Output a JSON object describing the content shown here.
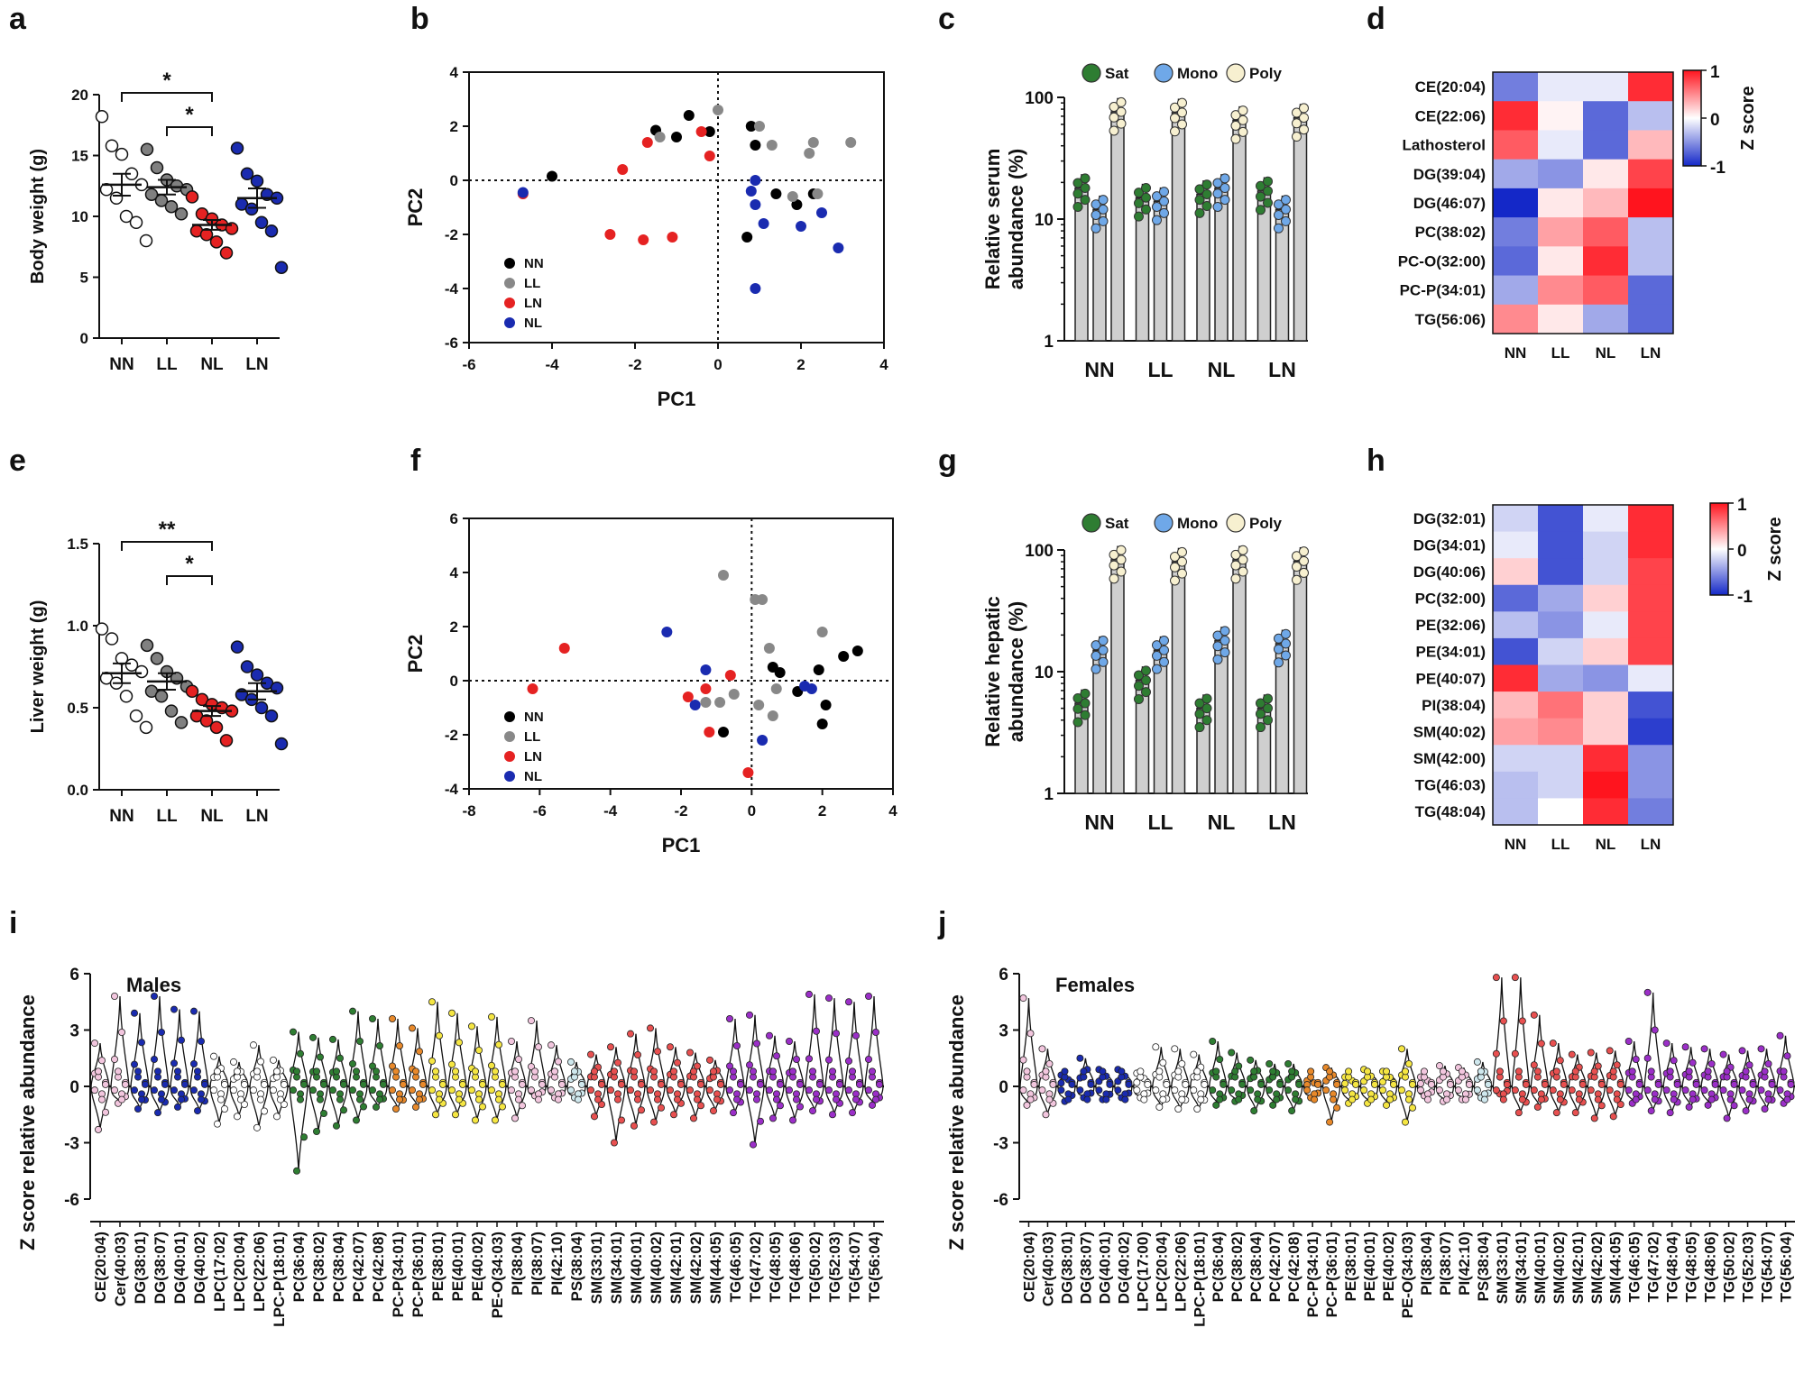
{
  "panel_labels": {
    "a": "a",
    "b": "b",
    "c": "c",
    "d": "d",
    "e": "e",
    "f": "f",
    "g": "g",
    "h": "h",
    "i": "i",
    "j": "j"
  },
  "colors": {
    "NN": "#ffffff",
    "LL": "#808080",
    "NL": "#e52222",
    "LN": "#1a2bb0",
    "sat": "#2e7d32",
    "mono": "#6fa8e8",
    "poly": "#f7f0d0",
    "pca_NN": "#000000",
    "pca_LL": "#888888",
    "pca_LN": "#e52222",
    "pca_NL": "#1a2bb0"
  },
  "chart_data": [
    {
      "id": "a",
      "type": "scatter",
      "ylabel": "Body weight (g)",
      "categories": [
        "NN",
        "LL",
        "NL",
        "LN"
      ],
      "ylim": [
        0,
        20
      ],
      "yticks": [
        "0",
        "5",
        "10",
        "15",
        "20"
      ],
      "values": [
        [
          18.2,
          15.8,
          15.1,
          13.5,
          12.6,
          12.2,
          11.5,
          10.0,
          9.5,
          8.0
        ],
        [
          15.5,
          14.0,
          13.0,
          12.5,
          12.2,
          11.8,
          11.3,
          10.8,
          10.2
        ],
        [
          11.6,
          10.2,
          9.8,
          9.3,
          9.0,
          8.8,
          8.5,
          7.9,
          7.0
        ],
        [
          15.6,
          13.5,
          12.9,
          11.8,
          11.5,
          11.0,
          10.6,
          9.5,
          8.8,
          5.8
        ]
      ],
      "means": [
        12.6,
        12.4,
        9.3,
        11.5
      ],
      "sem": [
        0.9,
        0.6,
        0.4,
        0.8
      ],
      "significance": [
        {
          "from": "NN",
          "to": "NL",
          "label": "*"
        },
        {
          "from": "LL",
          "to": "NL",
          "label": "*"
        }
      ]
    },
    {
      "id": "b",
      "type": "scatter",
      "xlabel": "PC1",
      "ylabel": "PC2",
      "xlim": [
        -6,
        4
      ],
      "ylim": [
        -6,
        4
      ],
      "xticks": [
        "-6",
        "-4",
        "-2",
        "0",
        "2",
        "4"
      ],
      "yticks": [
        "-6",
        "-4",
        "-2",
        "0",
        "2",
        "4"
      ],
      "legend": [
        "NN",
        "LL",
        "LN",
        "NL"
      ],
      "series": [
        {
          "name": "NN",
          "points": [
            [
              -4.0,
              0.15
            ],
            [
              -1.5,
              1.85
            ],
            [
              -1.0,
              1.6
            ],
            [
              -0.7,
              2.4
            ],
            [
              -0.2,
              1.8
            ],
            [
              0.8,
              2.0
            ],
            [
              0.9,
              1.3
            ],
            [
              0.7,
              -2.1
            ],
            [
              1.4,
              -0.5
            ],
            [
              1.9,
              -0.9
            ],
            [
              2.3,
              -0.5
            ]
          ]
        },
        {
          "name": "LL",
          "points": [
            [
              0,
              2.6
            ],
            [
              1.0,
              2.0
            ],
            [
              1.3,
              1.3
            ],
            [
              1.8,
              -0.6
            ],
            [
              2.2,
              1.0
            ],
            [
              2.3,
              1.4
            ],
            [
              2.4,
              -0.5
            ],
            [
              3.2,
              1.4
            ],
            [
              -1.4,
              1.6
            ]
          ]
        },
        {
          "name": "LN",
          "points": [
            [
              -4.7,
              -0.5
            ],
            [
              -2.3,
              0.4
            ],
            [
              -2.6,
              -2.0
            ],
            [
              -1.8,
              -2.2
            ],
            [
              -1.1,
              -2.1
            ],
            [
              -1.7,
              1.4
            ],
            [
              -0.4,
              1.8
            ],
            [
              -0.2,
              0.9
            ]
          ]
        },
        {
          "name": "NL",
          "points": [
            [
              -4.7,
              -0.45
            ],
            [
              0.8,
              -0.4
            ],
            [
              0.9,
              -0.9
            ],
            [
              1.1,
              -1.6
            ],
            [
              2.0,
              -1.7
            ],
            [
              2.5,
              -1.2
            ],
            [
              2.9,
              -2.5
            ],
            [
              0.9,
              -4.0
            ],
            [
              0.9,
              0
            ]
          ]
        }
      ]
    },
    {
      "id": "c",
      "type": "bar",
      "ylabel": "Relative serum abundance (%)",
      "categories": [
        "NN",
        "LL",
        "NL",
        "LN"
      ],
      "scale": "log",
      "yticks": [
        "1",
        "10",
        "100"
      ],
      "legend": [
        "Sat",
        "Mono",
        "Poly"
      ],
      "series": [
        {
          "name": "Sat",
          "values": [
            18,
            15,
            16,
            17
          ]
        },
        {
          "name": "Mono",
          "values": [
            12,
            14,
            18,
            12
          ]
        },
        {
          "name": "Poly",
          "values": [
            76,
            75,
            65,
            68
          ]
        }
      ]
    },
    {
      "id": "d",
      "type": "heatmap",
      "categories": [
        "NN",
        "LL",
        "NL",
        "LN"
      ],
      "colorbar_label": "Z score",
      "colorbar_ticks": [
        "1",
        "0",
        "-1"
      ],
      "rows": [
        "CE(20:04)",
        "CE(22:06)",
        "Lathosterol",
        "DG(39:04)",
        "DG(46:07)",
        "PC(38:02)",
        "PC-O(32:00)",
        "PC-P(34:01)",
        "TG(56:06)"
      ],
      "values": [
        [
          -0.6,
          -0.1,
          -0.1,
          0.9
        ],
        [
          0.9,
          0.05,
          -0.7,
          -0.3
        ],
        [
          0.7,
          -0.1,
          -0.7,
          0.3
        ],
        [
          -0.4,
          -0.5,
          0.1,
          0.8
        ],
        [
          -1.0,
          0.1,
          0.3,
          1.0
        ],
        [
          -0.6,
          0.4,
          0.7,
          -0.3
        ],
        [
          -0.7,
          0.1,
          0.9,
          -0.3
        ],
        [
          -0.4,
          0.5,
          0.7,
          -0.7
        ],
        [
          0.5,
          0.1,
          -0.4,
          -0.7
        ]
      ]
    },
    {
      "id": "e",
      "type": "scatter",
      "ylabel": "Liver weight (g)",
      "categories": [
        "NN",
        "LL",
        "NL",
        "LN"
      ],
      "ylim": [
        0,
        1.5
      ],
      "yticks": [
        "0.0",
        "0.5",
        "1.0",
        "1.5"
      ],
      "values": [
        [
          0.98,
          0.92,
          0.8,
          0.76,
          0.72,
          0.68,
          0.65,
          0.57,
          0.45,
          0.38
        ],
        [
          0.88,
          0.8,
          0.72,
          0.68,
          0.63,
          0.6,
          0.57,
          0.48,
          0.41
        ],
        [
          0.6,
          0.55,
          0.52,
          0.5,
          0.48,
          0.45,
          0.42,
          0.38,
          0.3
        ],
        [
          0.87,
          0.75,
          0.7,
          0.65,
          0.62,
          0.58,
          0.55,
          0.5,
          0.45,
          0.28
        ]
      ],
      "means": [
        0.71,
        0.66,
        0.48,
        0.6
      ],
      "sem": [
        0.06,
        0.05,
        0.03,
        0.05
      ],
      "significance": [
        {
          "from": "NN",
          "to": "NL",
          "label": "**"
        },
        {
          "from": "LL",
          "to": "NL",
          "label": "*"
        }
      ]
    },
    {
      "id": "f",
      "type": "scatter",
      "xlabel": "PC1",
      "ylabel": "PC2",
      "xlim": [
        -8,
        4
      ],
      "ylim": [
        -4,
        6
      ],
      "xticks": [
        "-8",
        "-6",
        "-4",
        "-2",
        "0",
        "2",
        "4"
      ],
      "yticks": [
        "-4",
        "-2",
        "0",
        "2",
        "4",
        "6"
      ],
      "legend": [
        "NN",
        "LL",
        "LN",
        "NL"
      ],
      "series": [
        {
          "name": "NN",
          "points": [
            [
              0.6,
              0.5
            ],
            [
              0.8,
              0.3
            ],
            [
              1.3,
              -0.4
            ],
            [
              1.9,
              0.4
            ],
            [
              2.1,
              -0.9
            ],
            [
              2.6,
              0.9
            ],
            [
              3.0,
              1.1
            ],
            [
              2.0,
              -1.6
            ],
            [
              -0.8,
              -1.9
            ]
          ]
        },
        {
          "name": "LL",
          "points": [
            [
              -0.8,
              3.9
            ],
            [
              0.1,
              3.0
            ],
            [
              0.3,
              3.0
            ],
            [
              0.5,
              1.2
            ],
            [
              2.0,
              1.8
            ],
            [
              0.7,
              -0.3
            ],
            [
              0.2,
              -0.9
            ],
            [
              0.6,
              -1.3
            ],
            [
              -0.9,
              -0.8
            ],
            [
              -1.3,
              -0.8
            ],
            [
              -0.5,
              -0.5
            ]
          ]
        },
        {
          "name": "LN",
          "points": [
            [
              -5.3,
              1.2
            ],
            [
              -6.2,
              -0.3
            ],
            [
              -1.8,
              -0.6
            ],
            [
              -1.3,
              -0.3
            ],
            [
              -0.6,
              0.2
            ],
            [
              -1.2,
              -1.9
            ],
            [
              -0.1,
              -3.4
            ]
          ]
        },
        {
          "name": "NL",
          "points": [
            [
              -2.4,
              1.8
            ],
            [
              -1.3,
              0.4
            ],
            [
              -1.6,
              -0.9
            ],
            [
              0.3,
              -2.2
            ],
            [
              1.5,
              -0.2
            ],
            [
              1.7,
              -0.3
            ]
          ]
        }
      ]
    },
    {
      "id": "g",
      "type": "bar",
      "ylabel": "Relative hepatic abundance (%)",
      "categories": [
        "NN",
        "LL",
        "NL",
        "LN"
      ],
      "scale": "log",
      "yticks": [
        "1",
        "10",
        "100"
      ],
      "legend": [
        "Sat",
        "Mono",
        "Poly"
      ],
      "series": [
        {
          "name": "Sat",
          "values": [
            5.5,
            8.5,
            5,
            5
          ]
        },
        {
          "name": "Mono",
          "values": [
            15,
            15,
            18,
            17
          ]
        },
        {
          "name": "Poly",
          "values": [
            83,
            80,
            83,
            81
          ]
        }
      ]
    },
    {
      "id": "h",
      "type": "heatmap",
      "categories": [
        "NN",
        "LL",
        "NL",
        "LN"
      ],
      "colorbar_label": "Z score",
      "colorbar_ticks": [
        "1",
        "0",
        "-1"
      ],
      "rows": [
        "DG(32:01)",
        "DG(34:01)",
        "DG(40:06)",
        "PC(32:00)",
        "PE(32:06)",
        "PE(34:01)",
        "PE(40:07)",
        "PI(38:04)",
        "SM(40:02)",
        "SM(42:00)",
        "TG(46:03)",
        "TG(48:04)"
      ],
      "values": [
        [
          -0.2,
          -0.8,
          -0.1,
          0.9
        ],
        [
          -0.1,
          -0.8,
          -0.2,
          0.9
        ],
        [
          0.2,
          -0.8,
          -0.2,
          0.8
        ],
        [
          -0.7,
          -0.4,
          0.2,
          0.8
        ],
        [
          -0.3,
          -0.5,
          -0.1,
          0.8
        ],
        [
          -0.8,
          -0.2,
          0.2,
          0.8
        ],
        [
          0.9,
          -0.4,
          -0.5,
          -0.1
        ],
        [
          0.3,
          0.6,
          0.2,
          -0.8
        ],
        [
          0.4,
          0.5,
          0.2,
          -0.9
        ],
        [
          -0.2,
          -0.2,
          0.9,
          -0.5
        ],
        [
          -0.3,
          -0.2,
          1.0,
          -0.5
        ],
        [
          -0.3,
          0.0,
          0.9,
          -0.6
        ]
      ]
    },
    {
      "id": "i",
      "type": "violin",
      "title": "Males",
      "ylabel": "Z score relative abundance",
      "ylim": [
        -6,
        6
      ],
      "yticks": [
        "6",
        "3",
        "0",
        "-3",
        "-6"
      ],
      "categories": [
        "CE(20:04)",
        "Cer(40:03)",
        "DG(38:01)",
        "DG(38:07)",
        "DG(40:01)",
        "DG(40:02)",
        "LPC(17:02)",
        "LPC(20:04)",
        "LPC(22:06)",
        "LPC-P(18:01)",
        "PC(36:04)",
        "PC(38:02)",
        "PC(38:04)",
        "PC(42:07)",
        "PC(42:08)",
        "PC-P(34:01)",
        "PC-P(36:01)",
        "PE(38:01)",
        "PE(40:01)",
        "PE(40:02)",
        "PE-O(34:03)",
        "PI(38:04)",
        "PI(38:07)",
        "PI(42:10)",
        "PS(38:04)",
        "SM(33:01)",
        "SM(34:01)",
        "SM(40:01)",
        "SM(40:02)",
        "SM(42:01)",
        "SM(42:02)",
        "SM(44:05)",
        "TG(46:05)",
        "TG(47:02)",
        "TG(48:05)",
        "TG(48:06)",
        "TG(50:02)",
        "TG(52:03)",
        "TG(54:07)",
        "TG(56:04)"
      ],
      "max": [
        2.3,
        4.8,
        3.9,
        4.8,
        4.1,
        4.0,
        1.6,
        1.3,
        2.2,
        1.4,
        2.9,
        2.6,
        2.5,
        4.0,
        3.6,
        3.6,
        3.1,
        4.5,
        3.9,
        3.2,
        3.7,
        2.4,
        3.5,
        2.2,
        1.3,
        1.7,
        2.1,
        2.8,
        3.1,
        2.1,
        1.8,
        1.4,
        3.6,
        3.8,
        2.7,
        2.4,
        4.9,
        4.7,
        4.5,
        4.8
      ],
      "min": [
        -2.3,
        -0.9,
        -1.2,
        -1.4,
        -1.1,
        -1.3,
        -2.0,
        -1.6,
        -2.2,
        -1.6,
        -4.5,
        -2.4,
        -2.1,
        -1.8,
        -1.1,
        -1.2,
        -1.1,
        -1.5,
        -1.5,
        -1.8,
        -1.8,
        -1.7,
        -0.5,
        -0.6,
        -0.6,
        -1.6,
        -3.0,
        -2.1,
        -1.9,
        -1.5,
        -1.7,
        -1.3,
        -1.4,
        -3.1,
        -1.7,
        -1.8,
        -1.3,
        -1.5,
        -1.4,
        -1.0
      ]
    },
    {
      "id": "j",
      "type": "violin",
      "title": "Females",
      "ylabel": "Z score relative abundance",
      "ylim": [
        -6,
        6
      ],
      "yticks": [
        "6",
        "3",
        "0",
        "-3",
        "-6"
      ],
      "categories": [
        "CE(20:04)",
        "Cer(40:03)",
        "DG(38:01)",
        "DG(38:07)",
        "DG(40:01)",
        "DG(40:02)",
        "LPC(17:00)",
        "LPC(20:04)",
        "LPC(22:06)",
        "LPC-P(18:01)",
        "PC(36:04)",
        "PC(38:02)",
        "PC(38:04)",
        "PC(42:07)",
        "PC(42:08)",
        "PC-P(34:01)",
        "PC-P(36:01)",
        "PE(38:01)",
        "PE(40:01)",
        "PE(40:02)",
        "PE-O(34:03)",
        "PI(38:04)",
        "PI(38:07)",
        "PI(42:10)",
        "PS(38:04)",
        "SM(33:01)",
        "SM(34:01)",
        "SM(40:01)",
        "SM(40:02)",
        "SM(42:01)",
        "SM(42:02)",
        "SM(44:05)",
        "TG(46:05)",
        "TG(47:02)",
        "TG(48:04)",
        "TG(48:05)",
        "TG(48:06)",
        "TG(50:02)",
        "TG(52:03)",
        "TG(54:07)",
        "TG(56:04)"
      ],
      "max": [
        4.7,
        2.0,
        0.6,
        1.5,
        0.9,
        0.9,
        0.7,
        2.1,
        2.0,
        1.7,
        2.4,
        1.8,
        1.4,
        1.2,
        1.2,
        0.3,
        1.0,
        0.5,
        0.9,
        0.8,
        2.0,
        0.5,
        1.1,
        1.0,
        1.3,
        5.8,
        5.8,
        3.8,
        2.3,
        1.7,
        1.8,
        1.9,
        2.4,
        5.0,
        2.3,
        2.1,
        2.0,
        1.7,
        1.9,
        2.0,
        2.7
      ],
      "min": [
        -1.0,
        -1.5,
        -0.8,
        -0.6,
        -0.7,
        -0.6,
        -0.6,
        -1.1,
        -1.2,
        -1.2,
        -1.0,
        -0.8,
        -1.3,
        -1.0,
        -1.3,
        -0.6,
        -1.9,
        -0.9,
        -0.9,
        -1.0,
        -1.9,
        -0.5,
        -0.8,
        -0.7,
        -0.6,
        -0.4,
        -1.4,
        -1.1,
        -1.4,
        -1.4,
        -1.7,
        -1.6,
        -0.9,
        -1.3,
        -1.4,
        -1.1,
        -1.0,
        -1.7,
        -1.3,
        -1.2,
        -0.9
      ]
    }
  ]
}
